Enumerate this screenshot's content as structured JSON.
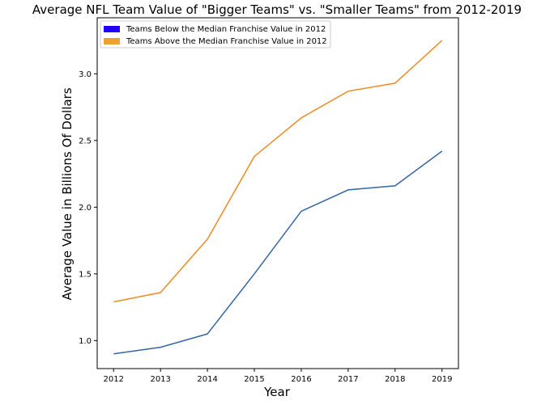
{
  "chart_data": {
    "type": "line",
    "title": "Average NFL Team Value of \"Bigger Teams\" vs. \"Smaller Teams\" from 2012-2019",
    "xlabel": "Year",
    "ylabel": "Average Value in Billions Of Dollars",
    "x": [
      2012,
      2013,
      2014,
      2015,
      2016,
      2017,
      2018,
      2019
    ],
    "x_tick_labels": [
      "2012",
      "2013",
      "2014",
      "2015",
      "2016",
      "2017",
      "2018",
      "2019"
    ],
    "y_ticks": [
      1.0,
      1.5,
      2.0,
      2.5,
      3.0
    ],
    "y_tick_labels": [
      "1.0",
      "1.5",
      "2.0",
      "2.5",
      "3.0"
    ],
    "xlim": [
      2011.65,
      2019.35
    ],
    "ylim": [
      0.79,
      3.42
    ],
    "grid": false,
    "legend_position": "top-left",
    "series": [
      {
        "name": "Teams Below the Median Franchise Value in 2012",
        "values": [
          0.9,
          0.95,
          1.05,
          1.5,
          1.97,
          2.13,
          2.16,
          2.42
        ],
        "line_color": "#3465a4",
        "legend_color": "#2200ff"
      },
      {
        "name": "Teams Above the Median Franchise Value in 2012",
        "values": [
          1.29,
          1.36,
          1.76,
          2.38,
          2.67,
          2.87,
          2.93,
          3.25
        ],
        "line_color": "#f08a24",
        "legend_color": "#f0a030"
      }
    ]
  }
}
